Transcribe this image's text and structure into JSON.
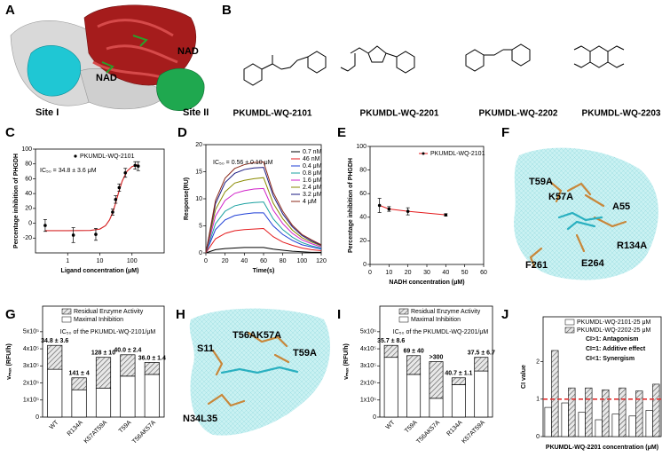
{
  "panels": [
    "A",
    "B",
    "C",
    "D",
    "E",
    "F",
    "G",
    "H",
    "I",
    "J"
  ],
  "panel_a": {
    "labels": [
      "NAD",
      "NAD",
      "Site I",
      "Site II"
    ]
  },
  "panel_b": {
    "compounds": [
      "PKUMDL-WQ-2101",
      "PKUMDL-WQ-2201",
      "PKUMDL-WQ-2202",
      "PKUMDL-WQ-2203"
    ]
  },
  "panel_f": {
    "residues": [
      "T59A",
      "K57A",
      "A55",
      "R134A",
      "E264",
      "F261"
    ]
  },
  "panel_h": {
    "residues": [
      "S11",
      "T56AK57A",
      "T59A",
      "N34L35"
    ]
  },
  "chart_data": [
    {
      "type": "scatter",
      "annotation": "IC₅₀ = 34.8 ± 3.6 μM",
      "xlabel": "Ligand concentration (μM)",
      "ylabel": "Percentage inhibition of PHGDH",
      "log_x": true,
      "xlim": [
        0.1,
        1000
      ],
      "xticks": [
        1,
        10,
        100
      ],
      "ylim": [
        -40,
        100
      ],
      "yticks": [
        -20,
        0,
        20,
        40,
        60,
        80,
        100
      ],
      "series": [
        {
          "name": "PKUMDL-WQ-2101",
          "color": "#000000",
          "x": [
            0.2,
            1.5,
            7.5,
            25,
            31,
            40,
            62,
            125,
            156
          ],
          "values": [
            -3,
            -16,
            -15,
            15,
            32,
            48,
            68,
            78,
            77
          ],
          "errors": [
            8,
            10,
            8,
            4,
            5,
            5,
            6,
            5,
            6
          ]
        }
      ],
      "fit": {
        "color": "#d62728",
        "x": [
          0.2,
          1,
          5,
          10,
          15,
          20,
          25,
          30,
          40,
          50,
          70,
          100,
          150
        ],
        "values": [
          -10,
          -10,
          -9.7,
          -7.9,
          -3.3,
          4.4,
          14.3,
          25.2,
          44.3,
          57.3,
          70.1,
          76.4,
          78.9
        ]
      }
    },
    {
      "type": "line",
      "annotation": "IC₅₀ = 0.56 ± 0.10 μM",
      "xlabel": "Time(s)",
      "ylabel": "Response(RU)",
      "xlim": [
        0,
        120
      ],
      "xticks": [
        0,
        20,
        40,
        60,
        80,
        100,
        120
      ],
      "ylim": [
        0,
        20
      ],
      "yticks": [
        0,
        5,
        10,
        15,
        20
      ],
      "x": [
        0,
        10,
        20,
        30,
        40,
        50,
        60,
        70,
        80,
        90,
        100,
        110,
        120
      ],
      "series": [
        {
          "name": "0.7 nM",
          "color": "#000000",
          "values": [
            0,
            0.6,
            0.8,
            0.9,
            1,
            1,
            1,
            0.7,
            0.5,
            0.3,
            0.2,
            0.1,
            0.1
          ]
        },
        {
          "name": "46 nM",
          "color": "#e41a1c",
          "values": [
            0,
            2.6,
            3.6,
            4.1,
            4.3,
            4.4,
            4.5,
            3.0,
            2.0,
            1.4,
            0.9,
            0.6,
            0.4
          ]
        },
        {
          "name": "0.4 μM",
          "color": "#1f3fd6",
          "values": [
            0,
            4.3,
            6.1,
            6.9,
            7.2,
            7.4,
            7.4,
            5.0,
            3.4,
            2.3,
            1.5,
            1.1,
            0.7
          ]
        },
        {
          "name": "0.8 μM",
          "color": "#1aa0a0",
          "values": [
            0,
            5.4,
            7.7,
            8.7,
            9.1,
            9.3,
            9.4,
            6.3,
            4.3,
            2.9,
            1.9,
            1.3,
            0.9
          ]
        },
        {
          "name": "1.6 μM",
          "color": "#d020c8",
          "values": [
            0,
            6.8,
            9.7,
            11.0,
            11.5,
            11.8,
            11.9,
            7.9,
            5.4,
            3.6,
            2.4,
            1.7,
            1.1
          ]
        },
        {
          "name": "2.4 μM",
          "color": "#8a8a00",
          "values": [
            0,
            8.0,
            11.3,
            12.9,
            13.4,
            13.7,
            13.9,
            9.2,
            6.3,
            4.2,
            2.8,
            2.0,
            1.3
          ]
        },
        {
          "name": "3.2 μM",
          "color": "#1a1a80",
          "values": [
            0,
            9.1,
            13.0,
            14.7,
            15.4,
            15.7,
            15.8,
            10.6,
            7.2,
            4.8,
            3.2,
            2.2,
            1.4
          ]
        },
        {
          "name": "4 μM",
          "color": "#8b2a1a",
          "values": [
            0,
            9.7,
            13.8,
            15.6,
            16.3,
            16.7,
            16.8,
            11.2,
            7.7,
            5.1,
            3.4,
            2.4,
            1.5
          ]
        }
      ]
    },
    {
      "type": "line",
      "xlabel": "NADH concentration (μM)",
      "ylabel": "Percentage inhibition of PHGDH",
      "xlim": [
        0,
        60
      ],
      "xticks": [
        0,
        10,
        20,
        30,
        40,
        50,
        60
      ],
      "ylim": [
        0,
        100
      ],
      "yticks": [
        0,
        20,
        40,
        60,
        80,
        100
      ],
      "x": [
        5,
        10,
        20,
        40
      ],
      "series": [
        {
          "name": "PKUMDL-WQ-2101",
          "color": "#e41a1c",
          "values": [
            50,
            47,
            45,
            42
          ],
          "errors": [
            6,
            2,
            3,
            1
          ]
        }
      ]
    },
    {
      "type": "stacked_bar",
      "subtitle": "IC₅₀ of the PKUMDL-WQ-2101/μM",
      "ylabel": "vₘₐₓ (RFU/h)",
      "categories": [
        "WT",
        "R134A",
        "K57AT59A",
        "T59A",
        "T56AK57A"
      ],
      "ylim": [
        0,
        650000
      ],
      "yticks": [
        0,
        {
          "value": 100000,
          "label": "1x10⁵"
        },
        {
          "value": 200000,
          "label": "2x10⁵"
        },
        {
          "value": 300000,
          "label": "3x10⁵"
        },
        {
          "value": 400000,
          "label": "4x10⁵"
        },
        {
          "value": 500000,
          "label": "5x10⁵"
        }
      ],
      "series": [
        {
          "name": "Residual Enzyme Activity",
          "fill": "hatch",
          "values": [
            140000,
            70000,
            180000,
            125000,
            70000
          ]
        },
        {
          "name": "Maximal Inhibition",
          "fill": "#ffffff",
          "values": [
            280000,
            160000,
            170000,
            240000,
            250000
          ]
        }
      ],
      "annotations": [
        "34.8 ± 3.6",
        "141 ± 4",
        "128 ± 10",
        "40.0 ± 2.4",
        "36.0 ± 1.4"
      ]
    },
    {
      "type": "stacked_bar",
      "subtitle": "IC₅₀ of the PKUMDL-WQ-2201/μM",
      "ylabel": "vₘₐₓ (RFU/h)",
      "categories": [
        "WT",
        "T59A",
        "T56AK57A",
        "R134A",
        "K57AT59A"
      ],
      "ylim": [
        0,
        650000
      ],
      "yticks": [
        0,
        {
          "value": 100000,
          "label": "1x10⁵"
        },
        {
          "value": 200000,
          "label": "2x10⁵"
        },
        {
          "value": 300000,
          "label": "3x10⁵"
        },
        {
          "value": 400000,
          "label": "4x10⁵"
        },
        {
          "value": 500000,
          "label": "5x10⁵"
        }
      ],
      "series": [
        {
          "name": "Residual Enzyme Activity",
          "fill": "hatch",
          "values": [
            70000,
            110000,
            215000,
            40000,
            80000
          ]
        },
        {
          "name": "Maximal Inhibition",
          "fill": "#ffffff",
          "values": [
            350000,
            250000,
            110000,
            190000,
            270000
          ]
        }
      ],
      "annotations": [
        "35.7 ± 8.6",
        "69 ± 40",
        ">300",
        "40.7 ± 1.1",
        "37.5 ± 6.7"
      ]
    },
    {
      "type": "grouped_bar",
      "xlabel": "PKUMDL-WQ-2201 concentration (μM)",
      "ylabel": "CI value",
      "categories": [
        null,
        null,
        null,
        null,
        null,
        null,
        null
      ],
      "ylim": [
        0,
        3.2
      ],
      "yticks": [
        0,
        1,
        2
      ],
      "reference_line": {
        "value": 1,
        "color": "#e03030"
      },
      "notes": [
        "CI>1: Antagonism",
        "CI=1: Additive effect",
        "CI<1: Synergism"
      ],
      "series": [
        {
          "name": "PKUMDL-WQ-2101-25 μM",
          "fill": "#ffffff",
          "values": [
            0.78,
            0.9,
            0.65,
            0.45,
            0.6,
            0.55,
            0.7
          ]
        },
        {
          "name": "PKUMDL-WQ-2202-25 μM",
          "fill": "hatch",
          "values": [
            2.3,
            1.3,
            1.3,
            1.25,
            1.3,
            1.22,
            1.4
          ]
        }
      ]
    }
  ]
}
